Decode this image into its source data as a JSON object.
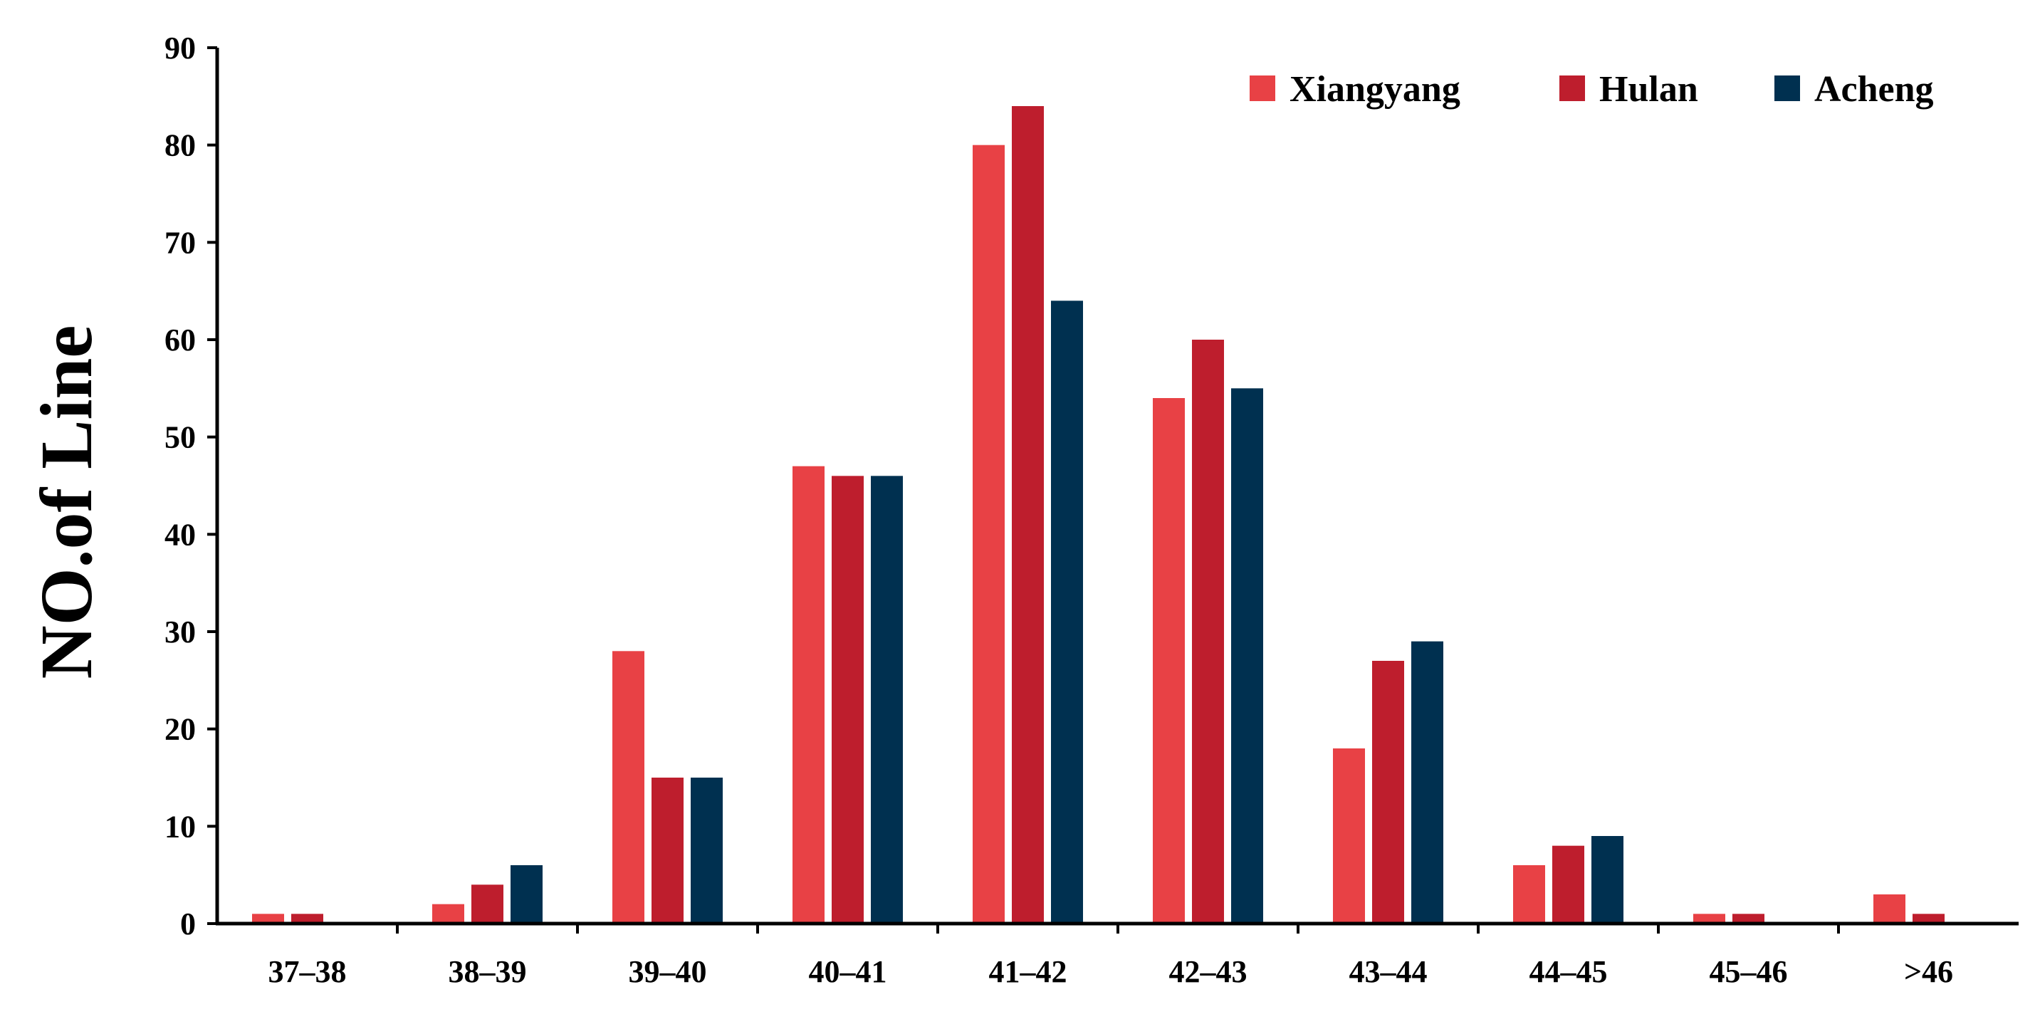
{
  "chart_data": {
    "type": "bar",
    "title": "",
    "xlabel": "",
    "ylabel": "NO.of Line",
    "ylim": [
      0,
      90
    ],
    "yticks": [
      0,
      10,
      20,
      30,
      40,
      50,
      60,
      70,
      80,
      90
    ],
    "grid": false,
    "legend_position": "top-right",
    "categories": [
      "37–38",
      "38–39",
      "39–40",
      "40–41",
      "41–42",
      "42–43",
      "43–44",
      "44–45",
      "45–46",
      ">46"
    ],
    "series": [
      {
        "name": "Xiangyang",
        "color": "#E84145",
        "values": [
          1,
          2,
          28,
          47,
          80,
          54,
          18,
          6,
          1,
          3
        ]
      },
      {
        "name": "Hulan",
        "color": "#BE1E2D",
        "values": [
          1,
          4,
          15,
          46,
          84,
          60,
          27,
          8,
          1,
          1
        ]
      },
      {
        "name": "Acheng",
        "color": "#003050",
        "values": [
          0,
          6,
          15,
          46,
          64,
          55,
          29,
          9,
          0,
          0
        ]
      }
    ]
  }
}
